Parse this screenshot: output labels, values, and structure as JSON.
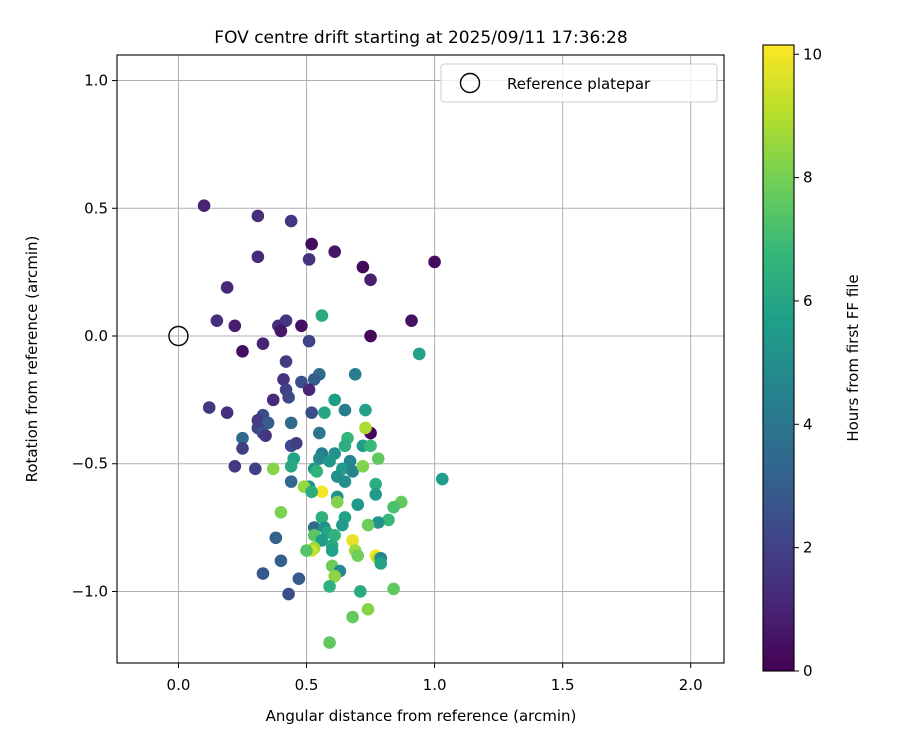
{
  "chart_data": {
    "type": "scatter",
    "title": "FOV centre drift starting at 2025/09/11 17:36:28",
    "xlabel": "Angular distance from reference (arcmin)",
    "ylabel": "Rotation from reference (arcmin)",
    "xlim": [
      -0.24,
      2.13
    ],
    "ylim": [
      -1.28,
      1.1
    ],
    "xticks": [
      0.0,
      0.5,
      1.0,
      1.5,
      2.0
    ],
    "xtick_labels": [
      "0.0",
      "0.5",
      "1.0",
      "1.5",
      "2.0"
    ],
    "yticks": [
      -1.0,
      -0.5,
      0.0,
      0.5,
      1.0
    ],
    "ytick_labels": [
      "−1.0",
      "−0.5",
      "0.0",
      "0.5",
      "1.0"
    ],
    "grid": true,
    "legend": {
      "position": "upper right",
      "entries": [
        {
          "label": "Reference platepar",
          "marker": "open-circle"
        }
      ]
    },
    "colorbar": {
      "label": "Hours from first FF file",
      "min": 0,
      "max": 10.15,
      "ticks": [
        0,
        2,
        4,
        6,
        8,
        10
      ],
      "tick_labels": [
        "0",
        "2",
        "4",
        "6",
        "8",
        "10"
      ],
      "colormap": "viridis",
      "colors": [
        "#440154",
        "#482878",
        "#3e4989",
        "#31688e",
        "#26828e",
        "#1f9e89",
        "#35b779",
        "#6ece58",
        "#b5de2b",
        "#fde725"
      ]
    },
    "reference_point": {
      "x": 0.0,
      "y": 0.0
    },
    "points": [
      {
        "x": 0.1,
        "y": 0.51,
        "c": 1.0
      },
      {
        "x": 0.31,
        "y": 0.47,
        "c": 1.4
      },
      {
        "x": 0.44,
        "y": 0.45,
        "c": 1.6
      },
      {
        "x": 0.52,
        "y": 0.36,
        "c": 0.3
      },
      {
        "x": 0.61,
        "y": 0.33,
        "c": 0.6
      },
      {
        "x": 0.31,
        "y": 0.31,
        "c": 1.2
      },
      {
        "x": 0.51,
        "y": 0.3,
        "c": 1.5
      },
      {
        "x": 0.72,
        "y": 0.27,
        "c": 0.2
      },
      {
        "x": 1.0,
        "y": 0.29,
        "c": 0.3
      },
      {
        "x": 0.75,
        "y": 0.22,
        "c": 0.9
      },
      {
        "x": 0.19,
        "y": 0.19,
        "c": 1.1
      },
      {
        "x": 0.15,
        "y": 0.06,
        "c": 1.4
      },
      {
        "x": 0.22,
        "y": 0.04,
        "c": 0.8
      },
      {
        "x": 0.39,
        "y": 0.04,
        "c": 1.3
      },
      {
        "x": 0.42,
        "y": 0.06,
        "c": 1.6
      },
      {
        "x": 0.48,
        "y": 0.04,
        "c": 0.4
      },
      {
        "x": 0.91,
        "y": 0.06,
        "c": 0.5
      },
      {
        "x": 0.56,
        "y": 0.08,
        "c": 6.2
      },
      {
        "x": 0.4,
        "y": 0.02,
        "c": 0.6
      },
      {
        "x": 0.75,
        "y": 0.0,
        "c": 0.2
      },
      {
        "x": 0.51,
        "y": -0.02,
        "c": 2.0
      },
      {
        "x": 0.33,
        "y": -0.03,
        "c": 1.0
      },
      {
        "x": 0.25,
        "y": -0.06,
        "c": 0.4
      },
      {
        "x": 0.94,
        "y": -0.07,
        "c": 5.8
      },
      {
        "x": 0.42,
        "y": -0.1,
        "c": 1.8
      },
      {
        "x": 0.69,
        "y": -0.15,
        "c": 4.2
      },
      {
        "x": 0.55,
        "y": -0.15,
        "c": 3.5
      },
      {
        "x": 0.53,
        "y": -0.17,
        "c": 3.0
      },
      {
        "x": 0.48,
        "y": -0.18,
        "c": 2.5
      },
      {
        "x": 0.41,
        "y": -0.17,
        "c": 1.5
      },
      {
        "x": 0.51,
        "y": -0.21,
        "c": 1.1
      },
      {
        "x": 0.42,
        "y": -0.21,
        "c": 2.0
      },
      {
        "x": 0.43,
        "y": -0.24,
        "c": 2.2
      },
      {
        "x": 0.37,
        "y": -0.25,
        "c": 1.2
      },
      {
        "x": 0.61,
        "y": -0.25,
        "c": 5.6
      },
      {
        "x": 0.12,
        "y": -0.28,
        "c": 1.7
      },
      {
        "x": 0.19,
        "y": -0.3,
        "c": 1.4
      },
      {
        "x": 0.52,
        "y": -0.3,
        "c": 2.5
      },
      {
        "x": 0.57,
        "y": -0.3,
        "c": 6.0
      },
      {
        "x": 0.65,
        "y": -0.29,
        "c": 4.3
      },
      {
        "x": 0.73,
        "y": -0.29,
        "c": 5.8
      },
      {
        "x": 0.33,
        "y": -0.31,
        "c": 2.4
      },
      {
        "x": 0.31,
        "y": -0.33,
        "c": 1.8
      },
      {
        "x": 0.35,
        "y": -0.34,
        "c": 2.9
      },
      {
        "x": 0.44,
        "y": -0.34,
        "c": 3.4
      },
      {
        "x": 0.31,
        "y": -0.36,
        "c": 2.0
      },
      {
        "x": 0.33,
        "y": -0.38,
        "c": 2.6
      },
      {
        "x": 0.34,
        "y": -0.39,
        "c": 1.6
      },
      {
        "x": 0.25,
        "y": -0.4,
        "c": 3.5
      },
      {
        "x": 0.55,
        "y": -0.38,
        "c": 4.0
      },
      {
        "x": 0.75,
        "y": -0.38,
        "c": 0.2
      },
      {
        "x": 0.66,
        "y": -0.4,
        "c": 6.7
      },
      {
        "x": 0.44,
        "y": -0.43,
        "c": 2.3
      },
      {
        "x": 0.46,
        "y": -0.42,
        "c": 1.8
      },
      {
        "x": 0.25,
        "y": -0.44,
        "c": 1.9
      },
      {
        "x": 0.65,
        "y": -0.43,
        "c": 6.3
      },
      {
        "x": 0.72,
        "y": -0.43,
        "c": 5.7
      },
      {
        "x": 0.75,
        "y": -0.43,
        "c": 6.8
      },
      {
        "x": 0.56,
        "y": -0.46,
        "c": 4.3
      },
      {
        "x": 0.61,
        "y": -0.46,
        "c": 5.2
      },
      {
        "x": 0.73,
        "y": -0.36,
        "c": 8.9
      },
      {
        "x": 0.45,
        "y": -0.48,
        "c": 5.8
      },
      {
        "x": 0.55,
        "y": -0.48,
        "c": 4.8
      },
      {
        "x": 0.59,
        "y": -0.49,
        "c": 5.4
      },
      {
        "x": 0.67,
        "y": -0.49,
        "c": 4.7
      },
      {
        "x": 0.78,
        "y": -0.48,
        "c": 7.6
      },
      {
        "x": 0.22,
        "y": -0.51,
        "c": 1.7
      },
      {
        "x": 0.3,
        "y": -0.52,
        "c": 2.0
      },
      {
        "x": 0.37,
        "y": -0.52,
        "c": 8.3
      },
      {
        "x": 0.44,
        "y": -0.51,
        "c": 6.1
      },
      {
        "x": 0.53,
        "y": -0.52,
        "c": 5.5
      },
      {
        "x": 0.64,
        "y": -0.52,
        "c": 5.6
      },
      {
        "x": 0.68,
        "y": -0.53,
        "c": 4.6
      },
      {
        "x": 0.72,
        "y": -0.51,
        "c": 8.2
      },
      {
        "x": 0.54,
        "y": -0.53,
        "c": 6.6
      },
      {
        "x": 0.62,
        "y": -0.55,
        "c": 5.2
      },
      {
        "x": 1.03,
        "y": -0.56,
        "c": 5.6
      },
      {
        "x": 0.44,
        "y": -0.57,
        "c": 3.4
      },
      {
        "x": 0.65,
        "y": -0.57,
        "c": 5.0
      },
      {
        "x": 0.77,
        "y": -0.58,
        "c": 6.3
      },
      {
        "x": 0.51,
        "y": -0.59,
        "c": 5.1
      },
      {
        "x": 0.49,
        "y": -0.59,
        "c": 8.5
      },
      {
        "x": 0.56,
        "y": -0.61,
        "c": 10.0
      },
      {
        "x": 0.77,
        "y": -0.62,
        "c": 5.5
      },
      {
        "x": 0.62,
        "y": -0.63,
        "c": 5.1
      },
      {
        "x": 0.52,
        "y": -0.61,
        "c": 6.3
      },
      {
        "x": 0.62,
        "y": -0.65,
        "c": 8.2
      },
      {
        "x": 0.7,
        "y": -0.66,
        "c": 5.3
      },
      {
        "x": 0.87,
        "y": -0.65,
        "c": 7.7
      },
      {
        "x": 0.84,
        "y": -0.67,
        "c": 7.2
      },
      {
        "x": 0.4,
        "y": -0.69,
        "c": 8.1
      },
      {
        "x": 0.56,
        "y": -0.71,
        "c": 6.4
      },
      {
        "x": 0.65,
        "y": -0.71,
        "c": 5.8
      },
      {
        "x": 0.82,
        "y": -0.72,
        "c": 6.8
      },
      {
        "x": 0.78,
        "y": -0.73,
        "c": 5.2
      },
      {
        "x": 0.74,
        "y": -0.74,
        "c": 7.8
      },
      {
        "x": 0.64,
        "y": -0.74,
        "c": 5.5
      },
      {
        "x": 0.53,
        "y": -0.75,
        "c": 3.5
      },
      {
        "x": 0.57,
        "y": -0.75,
        "c": 5.2
      },
      {
        "x": 0.58,
        "y": -0.77,
        "c": 6.0
      },
      {
        "x": 0.61,
        "y": -0.78,
        "c": 6.6
      },
      {
        "x": 0.53,
        "y": -0.78,
        "c": 7.5
      },
      {
        "x": 0.38,
        "y": -0.79,
        "c": 3.2
      },
      {
        "x": 0.56,
        "y": -0.8,
        "c": 5.6
      },
      {
        "x": 0.68,
        "y": -0.8,
        "c": 9.8
      },
      {
        "x": 0.6,
        "y": -0.82,
        "c": 6.2
      },
      {
        "x": 0.53,
        "y": -0.83,
        "c": 8.6
      },
      {
        "x": 0.52,
        "y": -0.84,
        "c": 9.4
      },
      {
        "x": 0.5,
        "y": -0.84,
        "c": 7.4
      },
      {
        "x": 0.6,
        "y": -0.84,
        "c": 5.8
      },
      {
        "x": 0.69,
        "y": -0.84,
        "c": 8.6
      },
      {
        "x": 0.7,
        "y": -0.86,
        "c": 7.9
      },
      {
        "x": 0.77,
        "y": -0.86,
        "c": 10.0
      },
      {
        "x": 0.78,
        "y": -0.87,
        "c": 8.9
      },
      {
        "x": 0.79,
        "y": -0.87,
        "c": 4.5
      },
      {
        "x": 0.79,
        "y": -0.89,
        "c": 5.8
      },
      {
        "x": 0.4,
        "y": -0.88,
        "c": 3.1
      },
      {
        "x": 0.6,
        "y": -0.9,
        "c": 7.8
      },
      {
        "x": 0.33,
        "y": -0.93,
        "c": 2.8
      },
      {
        "x": 0.63,
        "y": -0.92,
        "c": 4.8
      },
      {
        "x": 0.61,
        "y": -0.94,
        "c": 8.4
      },
      {
        "x": 0.47,
        "y": -0.95,
        "c": 2.9
      },
      {
        "x": 0.59,
        "y": -0.98,
        "c": 6.5
      },
      {
        "x": 0.71,
        "y": -1.0,
        "c": 6.2
      },
      {
        "x": 0.84,
        "y": -0.99,
        "c": 7.6
      },
      {
        "x": 0.43,
        "y": -1.01,
        "c": 2.4
      },
      {
        "x": 0.74,
        "y": -1.07,
        "c": 8.3
      },
      {
        "x": 0.68,
        "y": -1.1,
        "c": 7.7
      },
      {
        "x": 0.59,
        "y": -1.2,
        "c": 7.6
      }
    ]
  }
}
